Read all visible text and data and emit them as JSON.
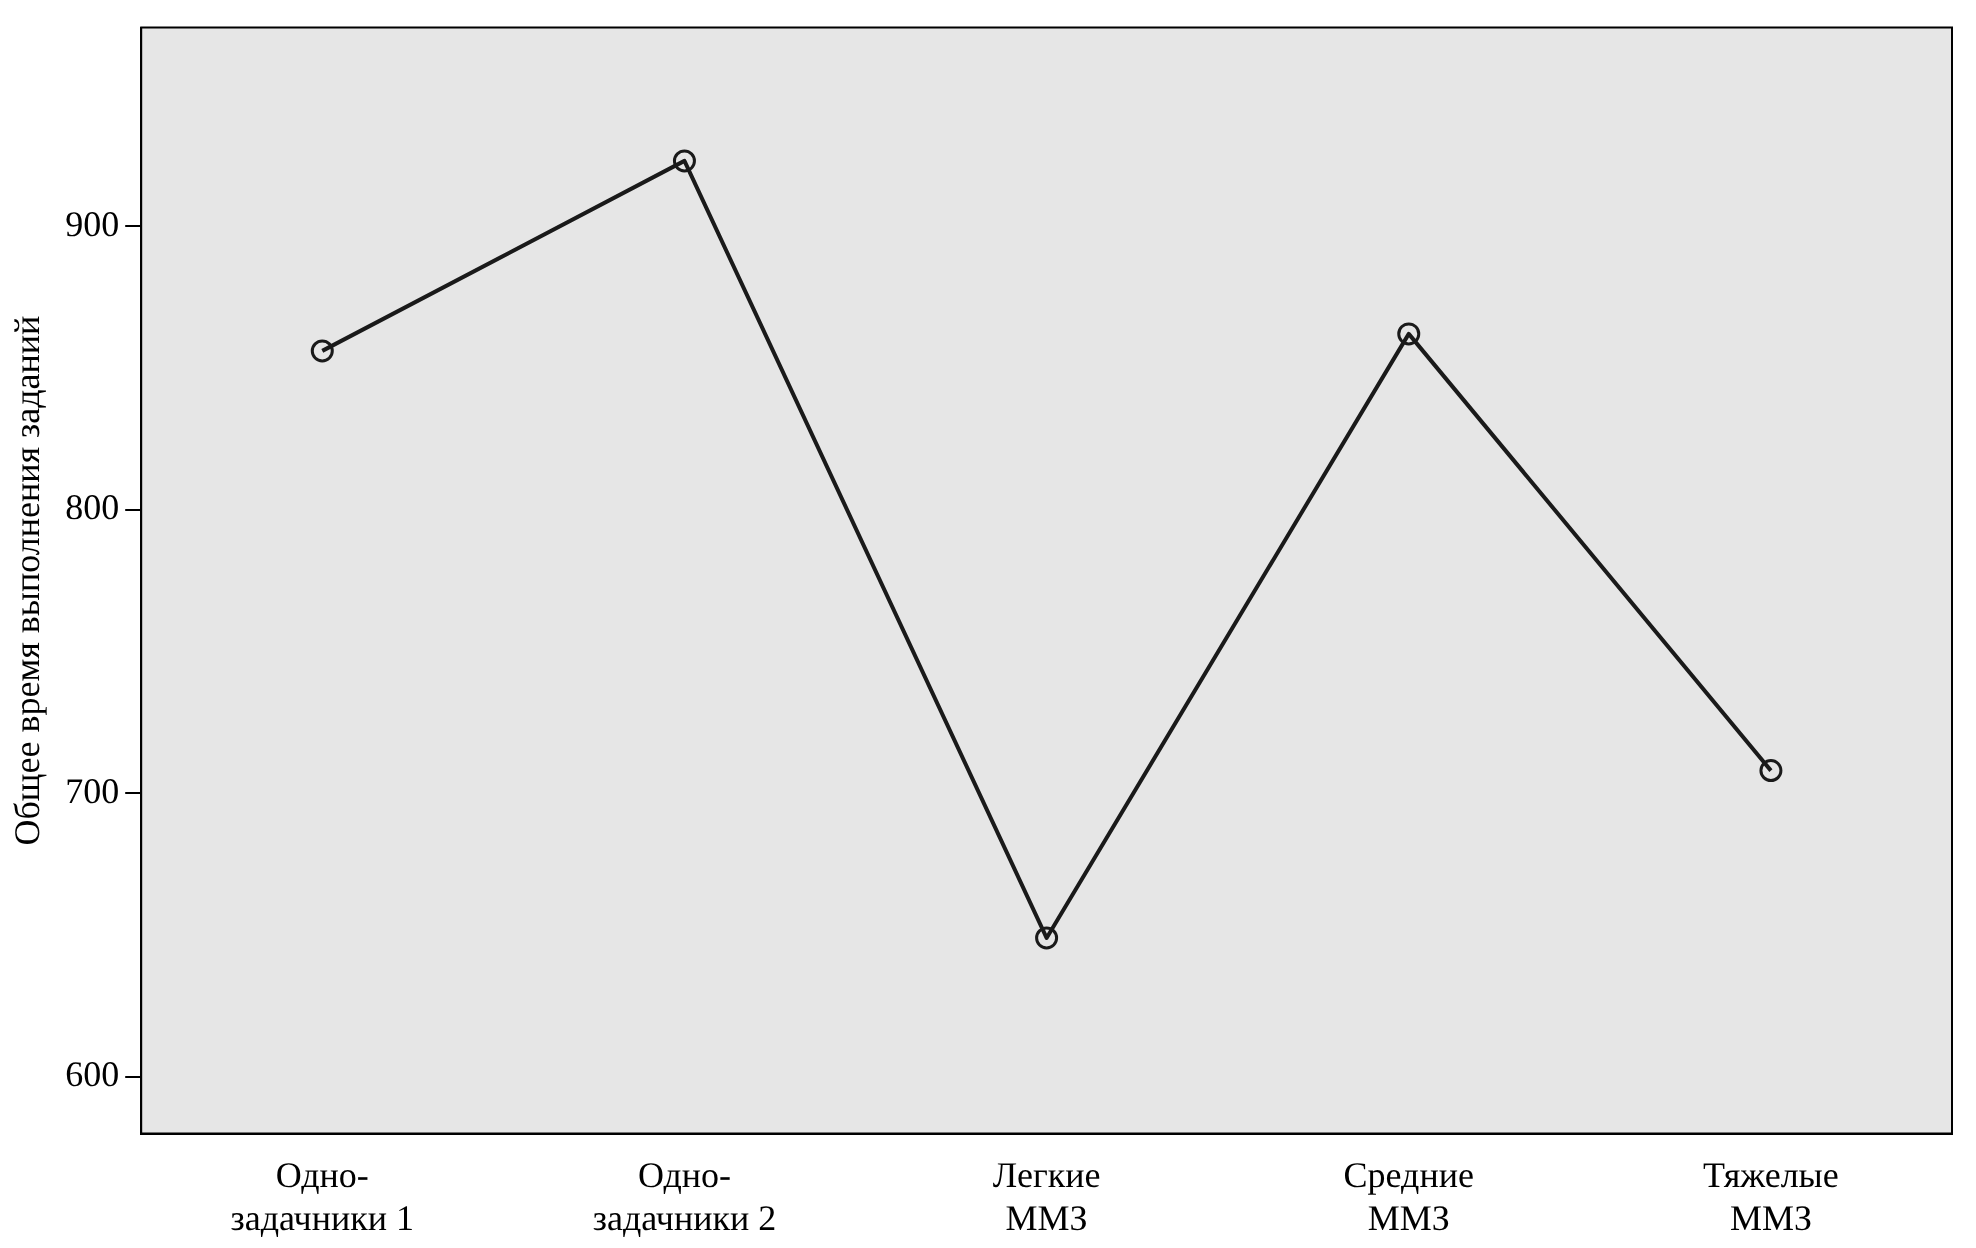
{
  "chart_data": {
    "type": "line",
    "ylabel": "Общее время выполнения заданий",
    "categories": [
      "Одно-\nзадачники 1",
      "Одно-\nзадачники 2",
      "Легкие\nММЗ",
      "Средние\nММЗ",
      "Тяжелые\nММЗ"
    ],
    "series": [
      {
        "color": "#1a1a1a",
        "values": [
          856,
          923,
          649,
          862,
          708
        ]
      }
    ],
    "ylim": [
      580,
      970
    ],
    "yticks": [
      600,
      700,
      800,
      900
    ],
    "grid": false,
    "legend": false,
    "marker": "circle",
    "line_style": "solid"
  }
}
